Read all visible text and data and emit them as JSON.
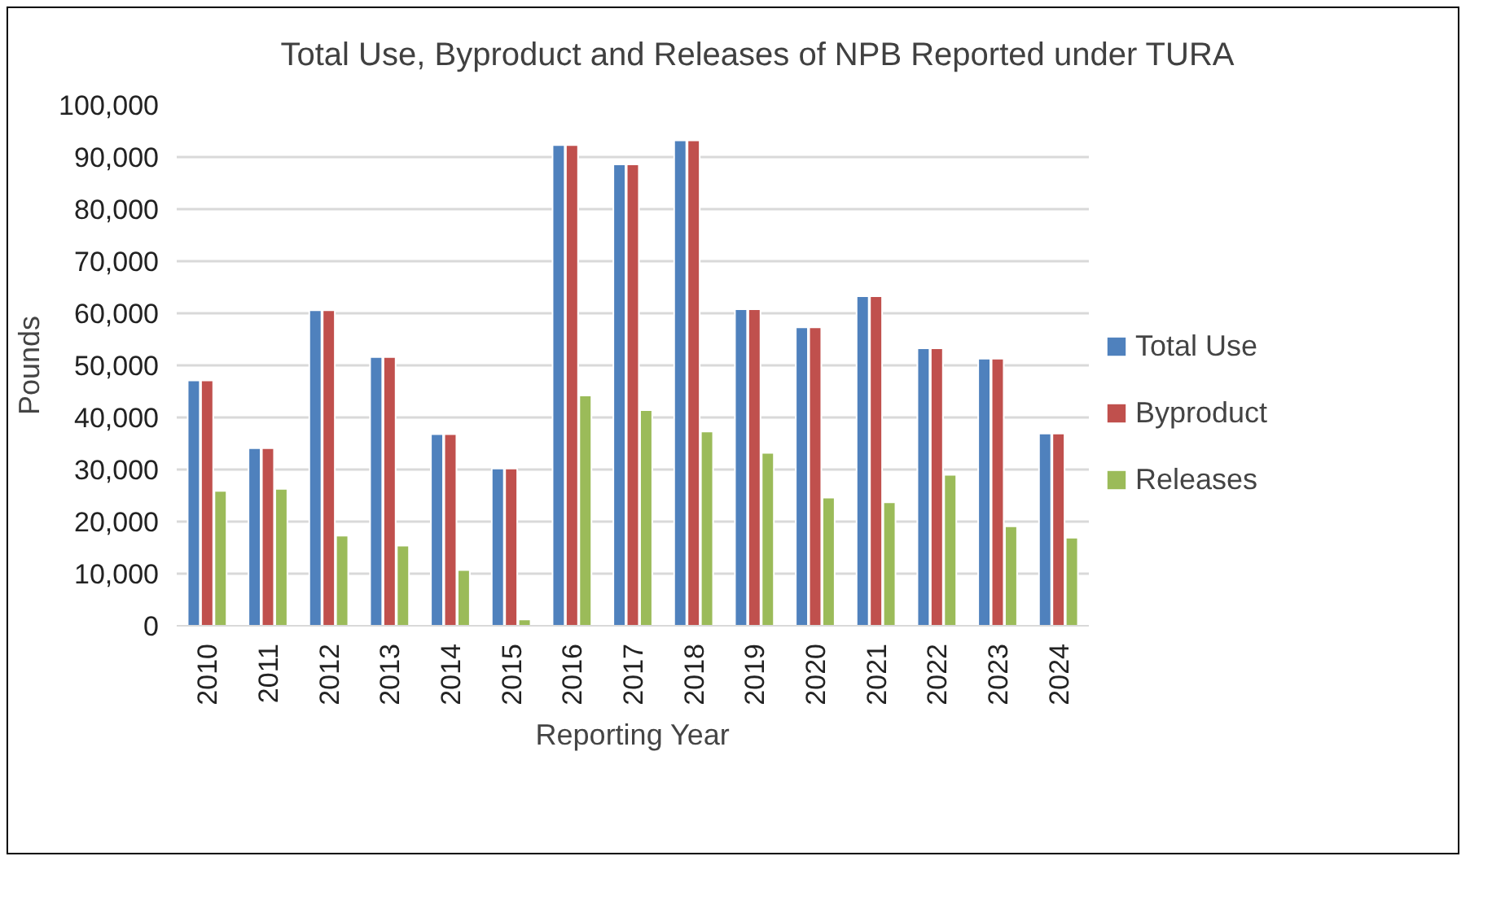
{
  "chart_data": {
    "type": "bar",
    "title": "Total Use, Byproduct and Releases of NPB Reported under TURA",
    "xlabel": "Reporting Year",
    "ylabel": "Pounds",
    "categories": [
      "2010",
      "2011",
      "2012",
      "2013",
      "2014",
      "2015",
      "2016",
      "2017",
      "2018",
      "2019",
      "2020",
      "2021",
      "2022",
      "2023",
      "2024"
    ],
    "series": [
      {
        "name": "Total Use",
        "color": "#4f81bd",
        "values": [
          47100,
          34100,
          60600,
          51600,
          36800,
          30200,
          92300,
          88600,
          93200,
          60800,
          57300,
          63300,
          53300,
          51300,
          36900
        ]
      },
      {
        "name": "Byproduct",
        "color": "#c0504d",
        "values": [
          47100,
          34100,
          60600,
          51600,
          36800,
          30200,
          92300,
          88600,
          93200,
          60800,
          57300,
          63300,
          53300,
          51300,
          36900
        ]
      },
      {
        "name": "Releases",
        "color": "#9bbb59",
        "values": [
          25900,
          26300,
          17300,
          15400,
          10700,
          1200,
          44200,
          41400,
          37300,
          33200,
          24600,
          23700,
          29000,
          19100,
          16900
        ]
      }
    ],
    "ylim": [
      0,
      100000
    ],
    "yticks": [
      {
        "value": 0,
        "label": "0"
      },
      {
        "value": 10000,
        "label": "10,000"
      },
      {
        "value": 20000,
        "label": "20,000"
      },
      {
        "value": 30000,
        "label": "30,000"
      },
      {
        "value": 40000,
        "label": "40,000"
      },
      {
        "value": 50000,
        "label": "50,000"
      },
      {
        "value": 60000,
        "label": "60,000"
      },
      {
        "value": 70000,
        "label": "70,000"
      },
      {
        "value": 80000,
        "label": "80,000"
      },
      {
        "value": 90000,
        "label": "90,000"
      },
      {
        "value": 100000,
        "label": "100,000"
      }
    ],
    "grid": "y",
    "legend": "right"
  }
}
